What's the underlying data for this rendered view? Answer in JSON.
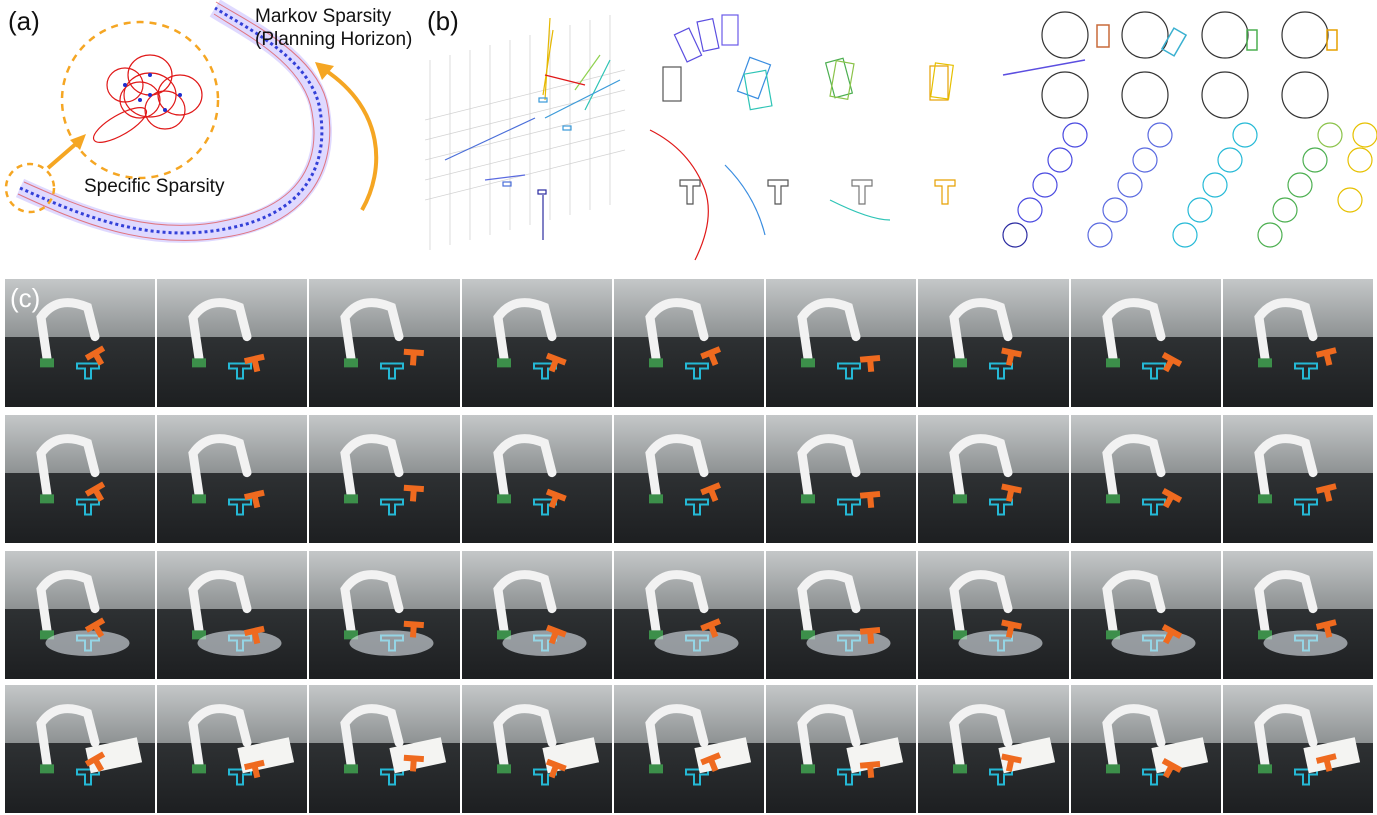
{
  "panel_a": {
    "label": "(a)",
    "markov_line1": "Markov Sparsity",
    "markov_line2": "(Planning Horizon)",
    "specific": "Specific Sparsity"
  },
  "panel_b": {
    "label": "(b)"
  },
  "panel_c": {
    "label": "(c)"
  },
  "colors": {
    "orange": "#f5a623",
    "blue": "#1f2fd0",
    "red": "#e01818",
    "cyan": "#25b9d6",
    "block": "#ef6a1f"
  }
}
